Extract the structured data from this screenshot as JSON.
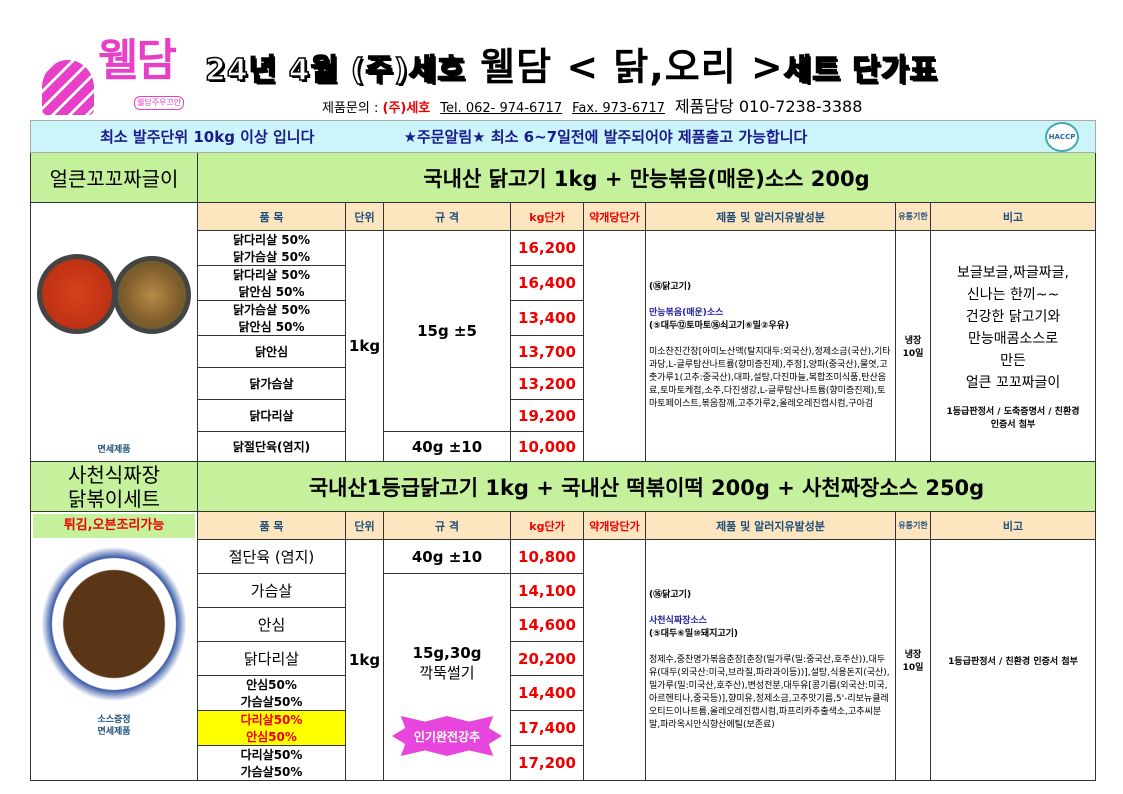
{
  "header": {
    "logo_text": "웰담",
    "logo_sub": "웰담주우끄안",
    "title_prefix": "24년 4월 (주)세호",
    "title_main": "웰담 < 닭,오리 >",
    "title_suffix": "세트 단가표",
    "inquiry_label": "제품문의 :",
    "company": "(주)세호",
    "tel": "Tel. 062- 974-6717",
    "fax": "Fax. 973-6717",
    "manager": "제품담당  010-7238-3388"
  },
  "notice": {
    "left": "최소 발주단위 10kg 이상 입니다",
    "right": "★주문알림★   최소 6~7일전에 발주되어야 제품출고 가능합니다",
    "badge": "HACCP"
  },
  "columns": [
    "품  목",
    "단위",
    "규  격",
    "kg단가",
    "약개당단가",
    "제품 및 알러지유발성분",
    "유통기한",
    "비고"
  ],
  "section1": {
    "name": "얼큰꼬꼬짜글이",
    "headline": "국내산 닭고기 1kg + 만능볶음(매운)소스 200g",
    "image_caption": "면세제품",
    "unit": "1kg",
    "spec_main": "15g ±5",
    "spec_last": "40g ±10",
    "items": [
      {
        "name": "닭다리살 50%\n닭가슴살 50%",
        "l1": "닭다리살 50%",
        "l2": "닭가슴살 50%",
        "price": "16,200"
      },
      {
        "l1": "닭다리살 50%",
        "l2": "닭안심 50%",
        "price": "16,400"
      },
      {
        "l1": "닭가슴살 50%",
        "l2": "닭안심 50%",
        "price": "13,400"
      },
      {
        "l1": "닭안심",
        "price": "13,700"
      },
      {
        "l1": "닭가슴살",
        "price": "13,200"
      },
      {
        "l1": "닭다리살",
        "price": "19,200"
      },
      {
        "l1": "닭절단육(염지)",
        "price": "10,000"
      }
    ],
    "ingredients": {
      "allergen1": "(⑯닭고기)",
      "sauce": "만능볶음(매운)소스",
      "allergen2": "(⑤대두⑫토마토⑯쇠고기⑥밀②우유)",
      "detail": "미소찬진간장[아미노산액(탈지대두:외국산),정제소금(국산),기타과당,L-글루탐산나트륨(향미증진제),주정],양파(중국산),물엿,고춧가루1(고추:중국산),대파,설탕,다진마늘,복합조미식품,탄산음료,토마토케첩,소주,다진생강,L-글루탐산나트륨(향미증진제),토마토페이스트,볶음참깨,고추가루2,올레오레진캡시컴,구아검"
    },
    "shelf": "냉장\n10일",
    "shelf1": "냉장",
    "shelf2": "10일",
    "remark": [
      "보글보글,짜글짜글,",
      "신나는 한끼~~",
      "건강한 닭고기와",
      "만능매콤소스로",
      "만든",
      "얼큰 꼬꼬짜글이"
    ],
    "remark_docs": "1등급판정서 / 도축증명서 / 친환경 인증서 첨부"
  },
  "section2": {
    "name1": "사천식짜장",
    "name2": "닭볶이세트",
    "headline": "국내산1등급닭고기 1kg + 국내산 떡볶이떡 200g + 사천짜장소스 250g",
    "tag": "튀김,오븐조리가능",
    "image_caption1": "소스증정",
    "image_caption2": "면세제품",
    "unit": "1kg",
    "spec_first": "40g ±10",
    "spec_main1": "15g,30g",
    "spec_main2": "깍뚝썰기",
    "badge": "인기완전강추",
    "items": [
      {
        "l1": "절단육 (염지)",
        "price": "10,800"
      },
      {
        "l1": "가슴살",
        "price": "14,100"
      },
      {
        "l1": "안심",
        "price": "14,600"
      },
      {
        "l1": "닭다리살",
        "price": "20,200"
      },
      {
        "l1": "안심50%",
        "l2": "가슴살50%",
        "price": "14,400"
      },
      {
        "l1": "다리살50%",
        "l2": "안심50%",
        "price": "17,400",
        "highlight": "#ffff00"
      },
      {
        "l1": "다리살50%",
        "l2": "가슴살50%",
        "price": "17,200"
      }
    ],
    "ingredients": {
      "allergen1": "(⑯닭고기)",
      "sauce": "사천식짜장소스",
      "allergen2": "(⑤대두⑥밀⑩돼지고기)",
      "detail": "정제수,중찬명가볶음춘장[춘장(밀가루(밀:중국산,호주산)),대두유(대두(외국산:미국,브라질,파라과이등))],설탕,식용돈지(국산),밀가루(밀:미국산,호주산),변성전분,대두유[콩기름(외국산:미국,아르헨티나,중국등)],향미유,정제소금,고추맛기름,5'-리보뉴클레오티드이나트륨,올레오레진캡시컴,파프리카추출색소,고추씨분말,파라옥시안식향산에틸(보존료)"
    },
    "shelf1": "냉장",
    "shelf2": "10일",
    "remark_docs": "1등급판정서 / 친환경 인증서 첨부"
  },
  "colors": {
    "notice_bg": "#ccf5fb",
    "section_bg": "#c6f19c",
    "header_bg": "#fde5c0",
    "price": "#e00000",
    "brand": "#e83fc8"
  }
}
